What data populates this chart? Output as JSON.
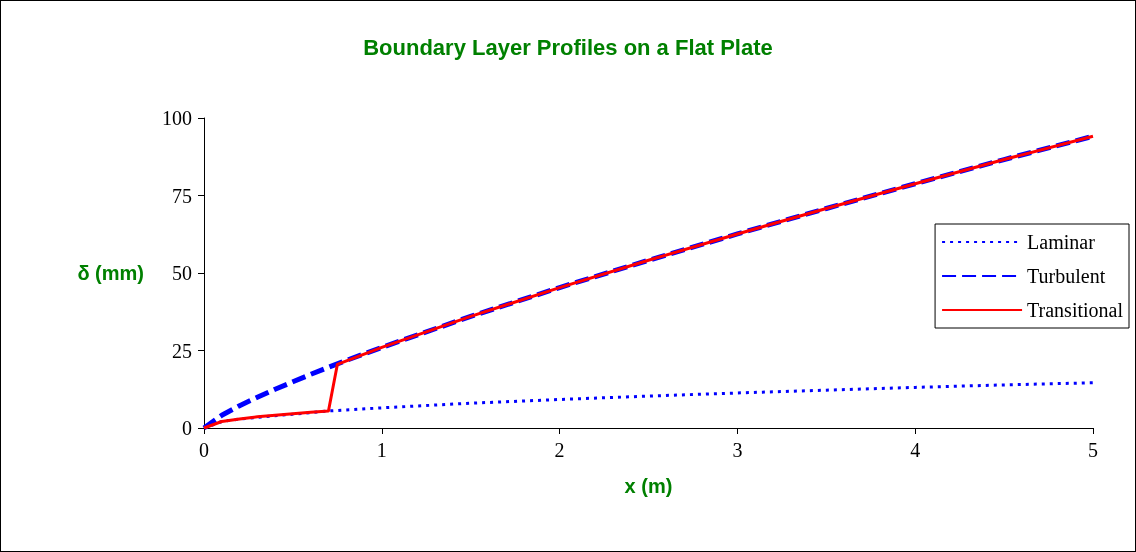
{
  "chart_data": {
    "type": "line",
    "title": "Boundary Layer Profiles on a Flat Plate",
    "xlabel": "x (m)",
    "ylabel": "δ (mm)",
    "xlim": [
      0,
      5
    ],
    "xticks": [
      0,
      1,
      2,
      3,
      4,
      5
    ],
    "ylim": [
      0,
      100
    ],
    "yticks": [
      0,
      25,
      50,
      75,
      100
    ],
    "grid": false,
    "legend": "right",
    "marker": "none",
    "series": [
      {
        "name": "Laminar",
        "color": "#0000ff",
        "line_style": "dotted",
        "x": [
          0,
          0.1,
          0.2,
          0.7,
          0.8,
          1,
          1.5,
          2,
          2.5,
          3,
          3.5,
          4,
          4.5,
          5
        ],
        "values": [
          0,
          2.1,
          2.9,
          5.5,
          5.8,
          6.5,
          8.0,
          9.2,
          10.3,
          11.3,
          12.2,
          13.1,
          13.9,
          14.6
        ]
      },
      {
        "name": "Turbulent",
        "color": "#0000ff",
        "line_style": "dashed",
        "x": [
          0,
          0.1,
          0.2,
          0.3,
          0.4,
          0.5,
          0.6,
          0.7,
          0.8,
          1,
          1.5,
          2,
          2.5,
          3,
          3.5,
          4,
          4.5,
          5
        ],
        "values": [
          0,
          4.1,
          7.2,
          9.9,
          12.5,
          14.9,
          17.3,
          19.6,
          21.8,
          26,
          36,
          45.3,
          54.1,
          62.6,
          70.8,
          78.8,
          86.6,
          94.1
        ]
      },
      {
        "name": "Transitional",
        "color": "#ff0000",
        "line_style": "solid",
        "x": [
          0,
          0.1,
          0.2,
          0.3,
          0.4,
          0.5,
          0.6,
          0.7,
          0.75,
          1,
          1.5,
          2,
          2.5,
          3,
          3.5,
          4,
          4.5,
          5
        ],
        "values": [
          0,
          2.1,
          2.9,
          3.6,
          4.1,
          4.6,
          5.1,
          5.5,
          20.5,
          26,
          36,
          45.3,
          54.1,
          62.6,
          70.8,
          78.8,
          86.6,
          94.1
        ]
      }
    ]
  }
}
